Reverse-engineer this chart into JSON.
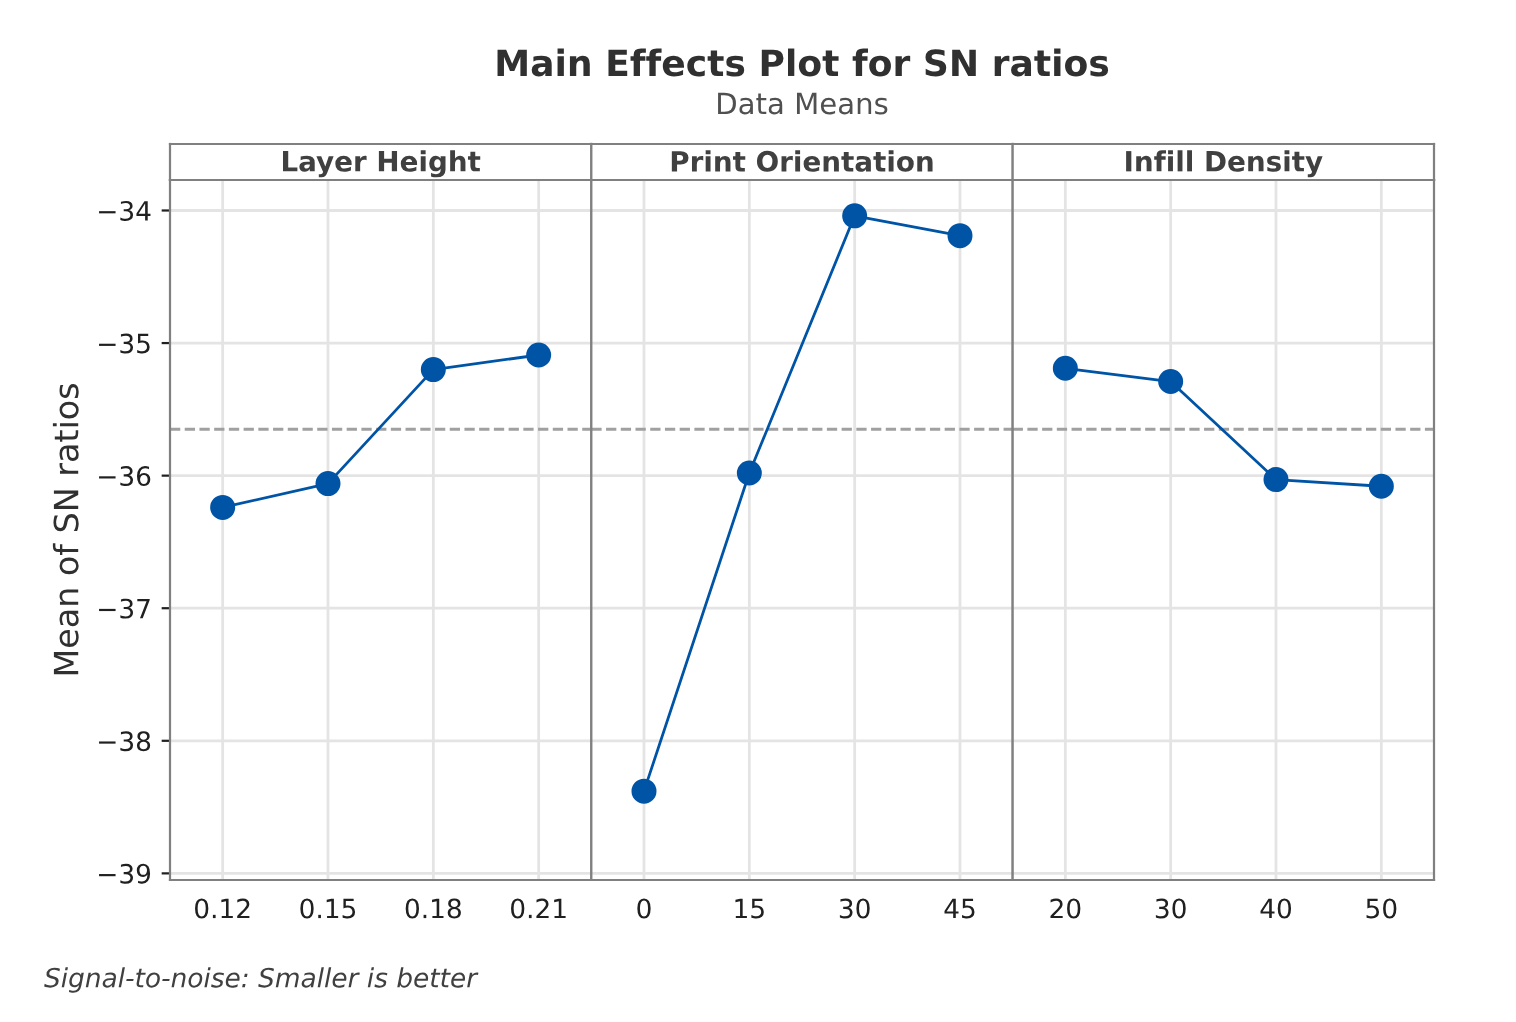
{
  "chart_data": [
    {
      "type": "line",
      "title": "Layer Height",
      "ylabel": "Mean of SN ratios",
      "annotations": [
        "Signal-to-noise: Smaller is better"
      ],
      "categories": [
        "0.12",
        "0.15",
        "0.18",
        "0.21"
      ],
      "series": [
        {
          "color": "#0054a6",
          "values": [
            -36.24,
            -36.06,
            -35.2,
            -35.09
          ]
        }
      ],
      "ylim": [
        -39.05,
        -33.77
      ],
      "yticks": [
        -39,
        -38,
        -37,
        -36,
        -35,
        -34
      ],
      "ref_lines": [
        {
          "axis": "y",
          "value": -35.65,
          "color": "#a0a0a0",
          "line_style": "dashed"
        }
      ],
      "grid": true,
      "marker": "circle",
      "line_style": "solid"
    },
    {
      "type": "line",
      "title": "Print Orientation",
      "subtitle": "Main Effects Plot for SN ratios",
      "annotations": [
        "Data Means"
      ],
      "categories": [
        "0",
        "15",
        "30",
        "45"
      ],
      "series": [
        {
          "color": "#0054a6",
          "values": [
            -38.38,
            -35.98,
            -34.04,
            -34.19
          ]
        }
      ],
      "ylim": [
        -39.05,
        -33.77
      ],
      "yticks": [
        -39,
        -38,
        -37,
        -36,
        -35,
        -34
      ],
      "tick_labels": "x",
      "ref_lines": [
        {
          "axis": "y",
          "value": -35.65,
          "color": "#a0a0a0",
          "line_style": "dashed"
        }
      ],
      "grid": true,
      "marker": "circle",
      "line_style": "solid"
    },
    {
      "type": "line",
      "title": "Infill Density",
      "categories": [
        "20",
        "30",
        "40",
        "50"
      ],
      "series": [
        {
          "color": "#0054a6",
          "values": [
            -35.19,
            -35.29,
            -36.03,
            -36.08
          ]
        }
      ],
      "ylim": [
        -39.05,
        -33.77
      ],
      "yticks": [
        -39,
        -38,
        -37,
        -36,
        -35,
        -34
      ],
      "tick_labels": "x",
      "ref_lines": [
        {
          "axis": "y",
          "value": -35.65,
          "color": "#a0a0a0",
          "line_style": "dashed"
        }
      ],
      "grid": true,
      "marker": "circle",
      "line_style": "solid"
    }
  ]
}
